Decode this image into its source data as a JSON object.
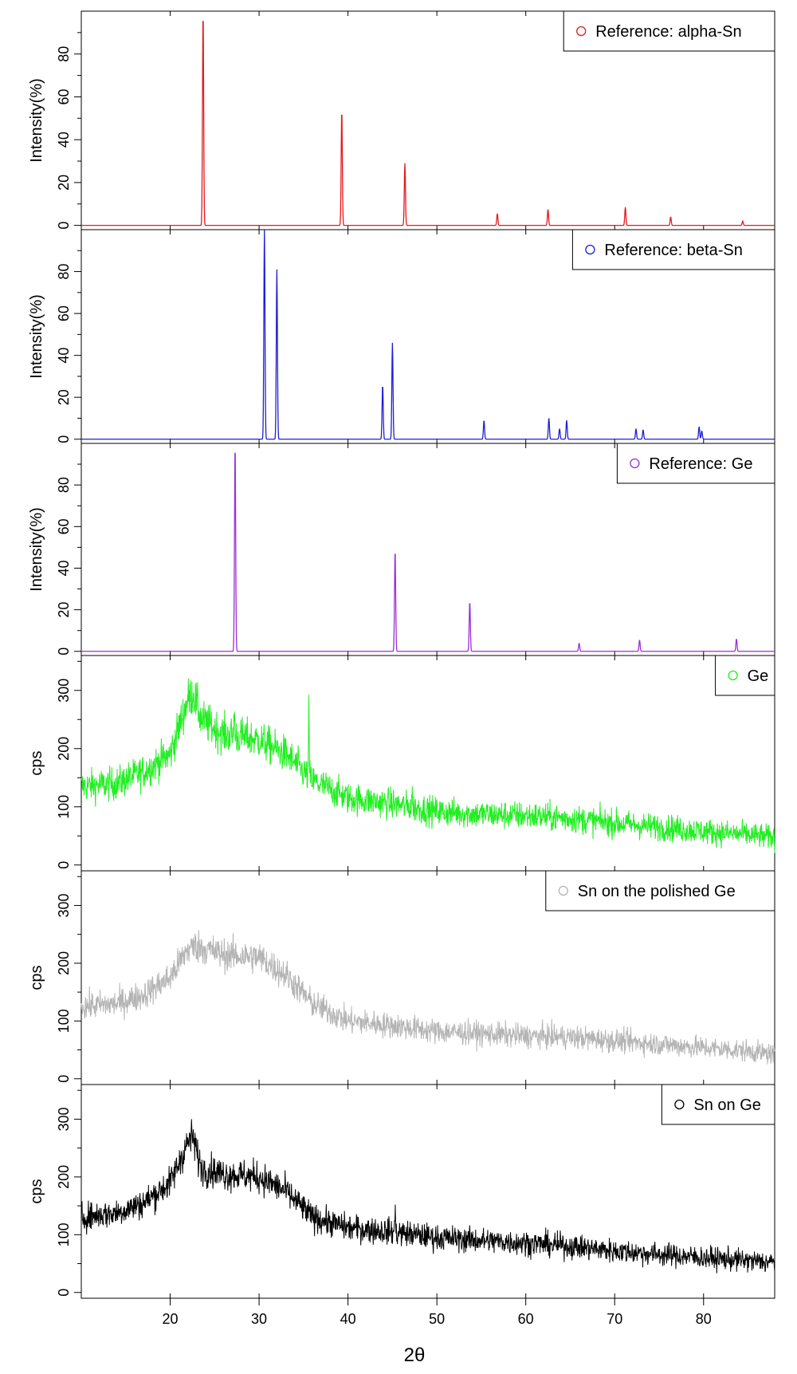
{
  "chart_data": {
    "type": "line",
    "xlabel": "2θ",
    "xlim": [
      10,
      88
    ],
    "x_ticks": [
      20,
      30,
      40,
      50,
      60,
      70,
      80
    ],
    "panels": [
      {
        "kind": "reference",
        "legend": "Reference: alpha-Sn",
        "color": "#e41a1c",
        "ylabel": "Intensity(%)",
        "ylim": [
          -2,
          100
        ],
        "y_ticks": [
          0,
          20,
          40,
          60,
          80
        ],
        "peaks": [
          [
            23.7,
            100
          ],
          [
            39.3,
            54
          ],
          [
            46.4,
            29
          ],
          [
            56.8,
            5.5
          ],
          [
            62.5,
            7.5
          ],
          [
            71.2,
            8.5
          ],
          [
            76.3,
            4
          ],
          [
            84.4,
            2
          ]
        ]
      },
      {
        "kind": "reference",
        "legend": "Reference: beta-Sn",
        "color": "#1f1fd6",
        "ylabel": "Intensity(%)",
        "ylim": [
          -2,
          100
        ],
        "y_ticks": [
          0,
          20,
          40,
          60,
          80
        ],
        "peaks": [
          [
            30.6,
            100
          ],
          [
            32.0,
            81
          ],
          [
            43.9,
            26
          ],
          [
            45.0,
            46
          ],
          [
            55.3,
            9
          ],
          [
            62.6,
            10
          ],
          [
            63.8,
            5
          ],
          [
            64.6,
            9
          ],
          [
            72.4,
            5
          ],
          [
            73.2,
            4.5
          ],
          [
            79.5,
            6
          ],
          [
            79.8,
            4
          ]
        ]
      },
      {
        "kind": "reference",
        "legend": "Reference: Ge",
        "color": "#9b30d9",
        "ylabel": "Intensity(%)",
        "ylim": [
          -2,
          100
        ],
        "y_ticks": [
          0,
          20,
          40,
          60,
          80
        ],
        "peaks": [
          [
            27.3,
            100
          ],
          [
            45.3,
            49
          ],
          [
            53.7,
            24
          ],
          [
            66.0,
            4
          ],
          [
            72.8,
            5.5
          ],
          [
            83.7,
            6
          ]
        ]
      },
      {
        "kind": "measured",
        "legend": "Ge",
        "color": "#22ee22",
        "ylabel": "cps",
        "ylim": [
          -10,
          360
        ],
        "y_ticks": [
          0,
          100,
          200,
          300
        ],
        "noise": 16,
        "profile": [
          [
            10,
            135
          ],
          [
            14,
            140
          ],
          [
            17,
            160
          ],
          [
            20,
            190
          ],
          [
            22,
            285
          ],
          [
            22.6,
            295
          ],
          [
            23.5,
            250
          ],
          [
            26,
            225
          ],
          [
            30,
            215
          ],
          [
            33,
            190
          ],
          [
            36,
            145
          ],
          [
            40,
            115
          ],
          [
            45,
            105
          ],
          [
            50,
            92
          ],
          [
            55,
            87
          ],
          [
            60,
            85
          ],
          [
            65,
            80
          ],
          [
            70,
            72
          ],
          [
            75,
            65
          ],
          [
            80,
            58
          ],
          [
            85,
            52
          ],
          [
            88,
            47
          ]
        ],
        "spikes": [
          [
            27.2,
            50
          ],
          [
            35.6,
            110
          ],
          [
            47.2,
            30
          ]
        ]
      },
      {
        "kind": "measured",
        "legend": "Sn on the polished Ge",
        "color": "#b4b4b4",
        "ylabel": "cps",
        "ylim": [
          -10,
          360
        ],
        "y_ticks": [
          0,
          100,
          200,
          300
        ],
        "noise": 14,
        "profile": [
          [
            10,
            125
          ],
          [
            14,
            130
          ],
          [
            17,
            145
          ],
          [
            20,
            175
          ],
          [
            22,
            225
          ],
          [
            23,
            230
          ],
          [
            26,
            215
          ],
          [
            30,
            210
          ],
          [
            33,
            180
          ],
          [
            36,
            130
          ],
          [
            40,
            100
          ],
          [
            45,
            92
          ],
          [
            50,
            82
          ],
          [
            55,
            78
          ],
          [
            60,
            74
          ],
          [
            65,
            72
          ],
          [
            70,
            66
          ],
          [
            75,
            60
          ],
          [
            80,
            54
          ],
          [
            85,
            48
          ],
          [
            88,
            42
          ]
        ],
        "spikes": []
      },
      {
        "kind": "measured",
        "legend": "Sn on Ge",
        "color": "#000000",
        "ylabel": "cps",
        "ylim": [
          -10,
          360
        ],
        "y_ticks": [
          0,
          100,
          200,
          300
        ],
        "noise": 14,
        "profile": [
          [
            10,
            130
          ],
          [
            14,
            138
          ],
          [
            17,
            155
          ],
          [
            20,
            190
          ],
          [
            22,
            260
          ],
          [
            22.5,
            270
          ],
          [
            23.5,
            215
          ],
          [
            26,
            205
          ],
          [
            30,
            200
          ],
          [
            33,
            175
          ],
          [
            36,
            130
          ],
          [
            40,
            112
          ],
          [
            45,
            105
          ],
          [
            50,
            95
          ],
          [
            55,
            90
          ],
          [
            60,
            86
          ],
          [
            65,
            80
          ],
          [
            70,
            72
          ],
          [
            75,
            66
          ],
          [
            80,
            60
          ],
          [
            85,
            55
          ],
          [
            88,
            52
          ]
        ],
        "spikes": [
          [
            45.3,
            35
          ]
        ]
      }
    ]
  }
}
